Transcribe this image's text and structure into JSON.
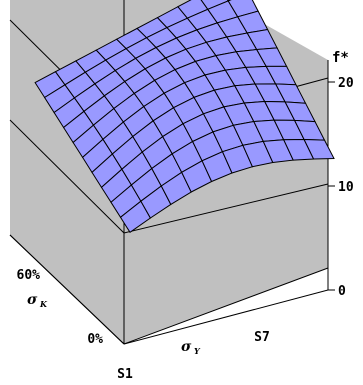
{
  "chart_data": {
    "type": "surface",
    "title": "",
    "z_label": "f*",
    "x_axis": {
      "symbol": "σ",
      "subscript": "Y",
      "ticks": [
        "S1",
        "S7"
      ],
      "count": 13
    },
    "y_axis": {
      "symbol": "σ",
      "subscript": "K",
      "ticks": [
        "0%",
        "60%"
      ]
    },
    "z_axis": {
      "ticks": [
        0,
        10,
        20
      ],
      "range": [
        0,
        23
      ]
    },
    "surface": {
      "corner_values": {
        "S1_0%": 10.5,
        "S13_0%": 12.5,
        "S1_max": 15.5,
        "S13_max": 21
      },
      "approx_peak": 22
    },
    "colors": {
      "surface": "#9999ff",
      "mesh": "#000000",
      "walls": "#c0c0c0",
      "floor": "#c0c0c0"
    }
  }
}
